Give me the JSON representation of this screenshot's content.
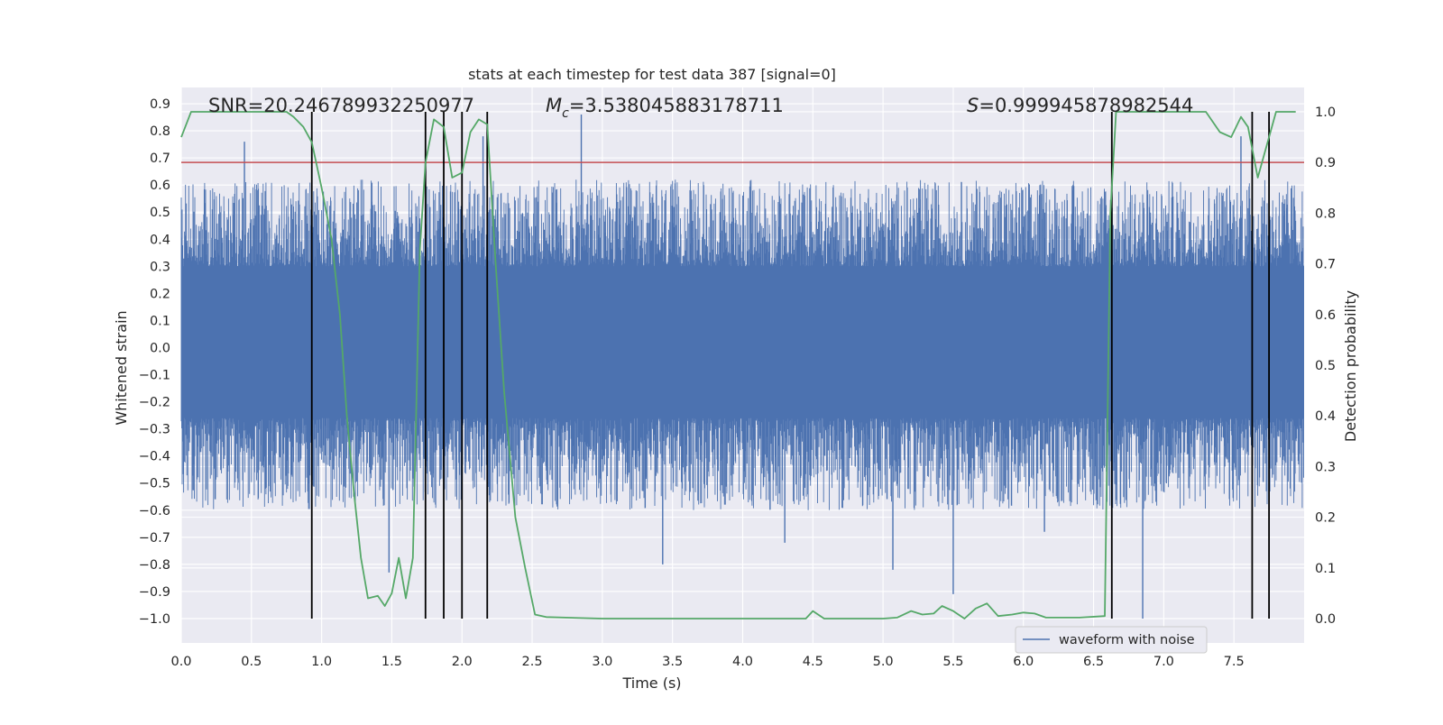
{
  "chart_data": {
    "type": "line",
    "title": "stats at each timestep for test data 387 [signal=0]",
    "xlabel": "Time (s)",
    "ylabel_left": "Whitened strain",
    "ylabel_right": "Detection probability",
    "xlim": [
      0.0,
      8.0
    ],
    "ylim_left": [
      -1.09,
      0.96
    ],
    "ylim_right": [
      -0.048,
      1.048
    ],
    "x_ticks": [
      "0.0",
      "0.5",
      "1.0",
      "1.5",
      "2.0",
      "2.5",
      "3.0",
      "3.5",
      "4.0",
      "4.5",
      "5.0",
      "5.5",
      "6.0",
      "6.5",
      "7.0",
      "7.5"
    ],
    "y_ticks_left": [
      "0.9",
      "0.8",
      "0.7",
      "0.6",
      "0.5",
      "0.4",
      "0.3",
      "0.2",
      "0.1",
      "0.0",
      "−0.1",
      "−0.2",
      "−0.3",
      "−0.4",
      "−0.5",
      "−0.6",
      "−0.7",
      "−0.8",
      "−0.9",
      "−1.0"
    ],
    "y_ticks_right": [
      "1.0",
      "0.9",
      "0.8",
      "0.7",
      "0.6",
      "0.5",
      "0.4",
      "0.3",
      "0.2",
      "0.1",
      "0.0"
    ],
    "grid": true,
    "legend": {
      "position": "lower-right",
      "label": "waveform with noise"
    },
    "annotations": {
      "snr": "SNR=20.246789932250977",
      "mc_symbol": "M",
      "mc_sub": "c",
      "mc_value": "=3.538045883178711",
      "s_symbol": "S",
      "s_value": "=0.999945878982544"
    },
    "threshold_line": {
      "value": 0.9,
      "axis": "right",
      "color": "#c44e52"
    },
    "vertical_lines": [
      0.93,
      1.74,
      1.87,
      2.0,
      2.18,
      6.63,
      7.63,
      7.75
    ],
    "waveform": {
      "name": "waveform with noise",
      "color": "#4c72b0",
      "t_range": [
        0.0,
        8.0
      ],
      "core_band": [
        -0.26,
        0.3
      ],
      "envelope_range": [
        -0.6,
        0.62
      ],
      "extreme_spikes": [
        {
          "t": 2.85,
          "v": 0.86
        },
        {
          "t": 6.85,
          "v": -1.0
        },
        {
          "t": 1.48,
          "v": -0.83
        },
        {
          "t": 5.5,
          "v": -0.91
        },
        {
          "t": 3.43,
          "v": -0.8
        },
        {
          "t": 5.07,
          "v": -0.82
        },
        {
          "t": 7.55,
          "v": 0.78
        },
        {
          "t": 6.15,
          "v": -0.68
        },
        {
          "t": 2.15,
          "v": 0.78
        },
        {
          "t": 0.45,
          "v": 0.76
        },
        {
          "t": 4.3,
          "v": -0.72
        }
      ]
    },
    "probability": {
      "color": "#55a868",
      "t": [
        0.0,
        0.07,
        0.15,
        0.25,
        0.35,
        0.45,
        0.55,
        0.65,
        0.75,
        0.8,
        0.87,
        0.93,
        1.0,
        1.07,
        1.13,
        1.18,
        1.23,
        1.28,
        1.33,
        1.4,
        1.45,
        1.5,
        1.55,
        1.6,
        1.65,
        1.7,
        1.74,
        1.8,
        1.87,
        1.93,
        2.0,
        2.06,
        2.12,
        2.18,
        2.24,
        2.3,
        2.38,
        2.45,
        2.52,
        2.6,
        3.0,
        3.5,
        4.0,
        4.3,
        4.45,
        4.5,
        4.58,
        4.7,
        5.0,
        5.1,
        5.2,
        5.28,
        5.36,
        5.42,
        5.5,
        5.58,
        5.66,
        5.74,
        5.82,
        5.92,
        6.0,
        6.08,
        6.16,
        6.4,
        6.58,
        6.62,
        6.66,
        6.72,
        7.0,
        7.3,
        7.4,
        7.48,
        7.55,
        7.6,
        7.67,
        7.73,
        7.8,
        7.88,
        7.94
      ],
      "p": [
        0.95,
        1.0,
        1.0,
        1.0,
        1.0,
        1.0,
        1.0,
        1.0,
        1.0,
        0.99,
        0.97,
        0.94,
        0.85,
        0.75,
        0.6,
        0.4,
        0.25,
        0.12,
        0.04,
        0.045,
        0.025,
        0.05,
        0.12,
        0.04,
        0.12,
        0.73,
        0.9,
        0.985,
        0.97,
        0.87,
        0.88,
        0.96,
        0.985,
        0.975,
        0.7,
        0.45,
        0.2,
        0.1,
        0.008,
        0.003,
        0.0,
        0.0,
        0.0,
        0.0,
        0.0,
        0.015,
        0.0,
        0.0,
        0.0,
        0.002,
        0.015,
        0.008,
        0.01,
        0.025,
        0.015,
        0.0,
        0.02,
        0.03,
        0.005,
        0.008,
        0.012,
        0.01,
        0.002,
        0.002,
        0.005,
        0.8,
        1.0,
        1.0,
        1.0,
        1.0,
        0.96,
        0.95,
        0.99,
        0.97,
        0.87,
        0.93,
        1.0,
        1.0,
        1.0
      ]
    }
  }
}
